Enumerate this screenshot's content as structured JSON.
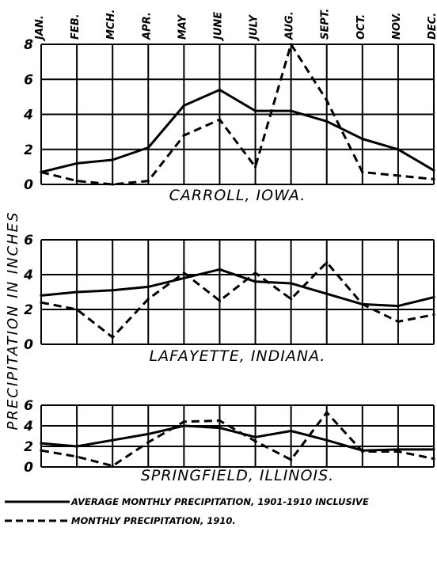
{
  "chart_data": [
    {
      "type": "line",
      "title": "CARROLL, IOWA.",
      "categories": [
        "JAN.",
        "FEB.",
        "MCH.",
        "APR.",
        "MAY",
        "JUNE",
        "JULY",
        "AUG.",
        "SEPT.",
        "OCT.",
        "NOV.",
        "DEC."
      ],
      "ylim": [
        0,
        8
      ],
      "yticks": [
        "0",
        "2",
        "4",
        "6",
        "8"
      ],
      "series": [
        {
          "name": "AVERAGE MONTHLY PRECIPITATION, 1901-1910 INCLUSIVE",
          "style": "solid",
          "values": [
            0.7,
            1.2,
            1.4,
            2.1,
            4.5,
            5.4,
            4.2,
            4.2,
            3.6,
            2.6,
            2.0,
            0.8
          ]
        },
        {
          "name": "MONTHLY PRECIPITATION, 1910.",
          "style": "dashed",
          "values": [
            0.7,
            0.2,
            0.0,
            0.2,
            2.8,
            3.7,
            1.0,
            8.0,
            4.8,
            0.7,
            0.5,
            0.3
          ]
        }
      ]
    },
    {
      "type": "line",
      "title": "LAFAYETTE, INDIANA.",
      "categories": [
        "JAN.",
        "FEB.",
        "MCH.",
        "APR.",
        "MAY",
        "JUNE",
        "JULY",
        "AUG.",
        "SEPT.",
        "OCT.",
        "NOV.",
        "DEC."
      ],
      "ylim": [
        0,
        6
      ],
      "yticks": [
        "0",
        "2",
        "4",
        "6"
      ],
      "series": [
        {
          "name": "AVERAGE MONTHLY PRECIPITATION, 1901-1910 INCLUSIVE",
          "style": "solid",
          "values": [
            2.8,
            3.0,
            3.1,
            3.3,
            3.8,
            4.3,
            3.6,
            3.5,
            2.9,
            2.3,
            2.2,
            2.7
          ]
        },
        {
          "name": "MONTHLY PRECIPITATION, 1910.",
          "style": "dashed",
          "values": [
            2.4,
            2.0,
            0.4,
            2.6,
            4.1,
            2.5,
            4.1,
            2.6,
            4.7,
            2.3,
            1.3,
            1.7
          ]
        }
      ]
    },
    {
      "type": "line",
      "title": "SPRINGFIELD, ILLINOIS.",
      "categories": [
        "JAN.",
        "FEB.",
        "MCH.",
        "APR.",
        "MAY",
        "JUNE",
        "JULY",
        "AUG.",
        "SEPT.",
        "OCT.",
        "NOV.",
        "DEC."
      ],
      "ylim": [
        0,
        6
      ],
      "yticks": [
        "0",
        "2",
        "4",
        "6"
      ],
      "series": [
        {
          "name": "AVERAGE MONTHLY PRECIPITATION, 1901-1910 INCLUSIVE",
          "style": "solid",
          "values": [
            2.3,
            2.0,
            2.6,
            3.2,
            4.0,
            3.8,
            2.9,
            3.5,
            2.6,
            1.6,
            1.7,
            1.7
          ]
        },
        {
          "name": "MONTHLY PRECIPITATION, 1910.",
          "style": "dashed",
          "values": [
            1.6,
            1.0,
            0.1,
            2.4,
            4.4,
            4.5,
            2.5,
            0.7,
            5.3,
            1.5,
            1.5,
            0.8
          ]
        }
      ]
    }
  ],
  "y_axis_label": "PRECIPITATION IN INCHES",
  "legend": [
    {
      "style": "solid",
      "label": "AVERAGE MONTHLY PRECIPITATION, 1901-1910 INCLUSIVE"
    },
    {
      "style": "dashed",
      "label": "MONTHLY PRECIPITATION, 1910."
    }
  ],
  "colors": {
    "ink": "#000000",
    "background": "#ffffff"
  }
}
